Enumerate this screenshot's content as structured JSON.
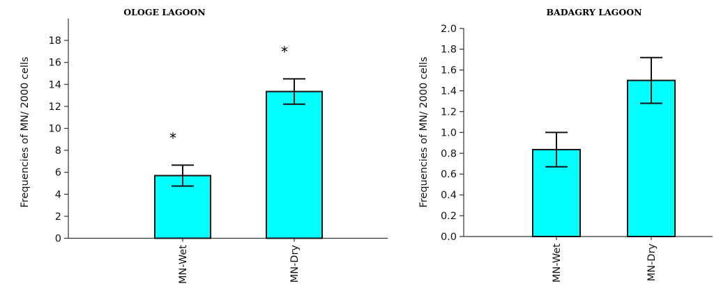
{
  "chart_data": [
    {
      "type": "bar",
      "title": "OLOGE LAGOON",
      "ylabel": "Frequencies of MN/ 2000 cells",
      "xlabel": "",
      "categories": [
        "MN-Wet",
        "MN-Dry"
      ],
      "values": [
        5.7,
        13.35
      ],
      "errors": [
        [
          4.75,
          6.65
        ],
        [
          12.2,
          14.5
        ]
      ],
      "annotations": [
        "*",
        "*"
      ],
      "ylim": [
        0,
        20
      ],
      "yticks": [
        "0",
        "2",
        "4",
        "6",
        "8",
        "10",
        "12",
        "14",
        "16",
        "18"
      ],
      "bar_color": "#00ffff",
      "grid": false
    },
    {
      "type": "bar",
      "title": "BADAGRY LAGOON",
      "ylabel": "Frequencies of MN/ 2000 cells",
      "xlabel": "",
      "categories": [
        "MN-Wet",
        "MN-Dry"
      ],
      "values": [
        0.835,
        1.5
      ],
      "errors": [
        [
          0.67,
          1.0
        ],
        [
          1.28,
          1.72
        ]
      ],
      "annotations": [
        "",
        ""
      ],
      "ylim": [
        0,
        2.0
      ],
      "yticks": [
        "0.0",
        "0.2",
        "0.4",
        "0.6",
        "0.8",
        "1.0",
        "1.2",
        "1.4",
        "1.6",
        "1.8",
        "2.0"
      ],
      "bar_color": "#00ffff",
      "grid": false
    }
  ]
}
